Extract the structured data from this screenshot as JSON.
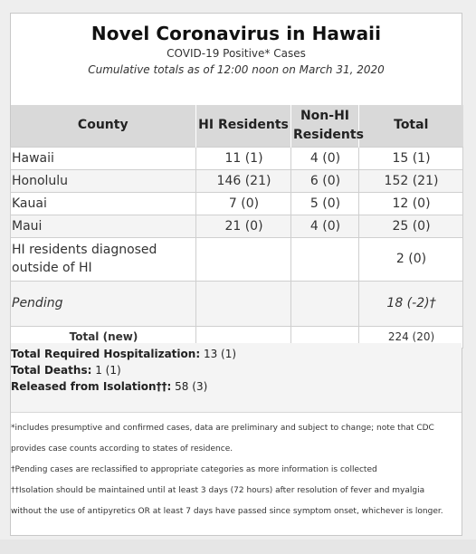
{
  "header": {
    "title": "Novel Coronavirus in Hawaii",
    "subtitle": "COVID-19 Positive* Cases",
    "as_of": "Cumulative totals as of 12:00 noon on March 31, 2020"
  },
  "table": {
    "columns": [
      "County",
      "HI Residents",
      "Non-HI Residents",
      "Total"
    ],
    "rows": [
      {
        "county": "Hawaii",
        "hi_residents": "11 (1)",
        "non_hi": "4 (0)",
        "total": "15 (1)"
      },
      {
        "county": "Honolulu",
        "hi_residents": "146 (21)",
        "non_hi": "6 (0)",
        "total": "152 (21)"
      },
      {
        "county": "Kauai",
        "hi_residents": "7 (0)",
        "non_hi": "5 (0)",
        "total": "12 (0)"
      },
      {
        "county": "Maui",
        "hi_residents": "21 (0)",
        "non_hi": "4 (0)",
        "total": "25 (0)"
      },
      {
        "county": "HI residents diagnosed outside of HI",
        "hi_residents": "",
        "non_hi": "",
        "total": "2 (0)"
      },
      {
        "county": "Pending",
        "hi_residents": "",
        "non_hi": "",
        "total": "18 (-2)†"
      }
    ],
    "total_row": {
      "label": "Total (new)",
      "total": "224 (20)"
    }
  },
  "summary": {
    "hospitalization_label": "Total Required Hospitalization:",
    "hospitalization_value": "13 (1)",
    "deaths_label": "Total Deaths:",
    "deaths_value": "1 (1)",
    "released_label": "Released from Isolation††:",
    "released_value": "58 (3)"
  },
  "notes": {
    "line1": "*includes presumptive and confirmed cases, data are preliminary and subject to change; note that CDC",
    "line2": "provides case counts according to states of residence.",
    "line3": "†Pending cases are reclassified to appropriate categories as more information is collected",
    "line4": "††Isolation should be maintained until at least 3 days (72 hours) after resolution of fever and myalgia",
    "line5": "without the use of antipyretics OR at least 7 days have passed since symptom onset, whichever is longer."
  }
}
